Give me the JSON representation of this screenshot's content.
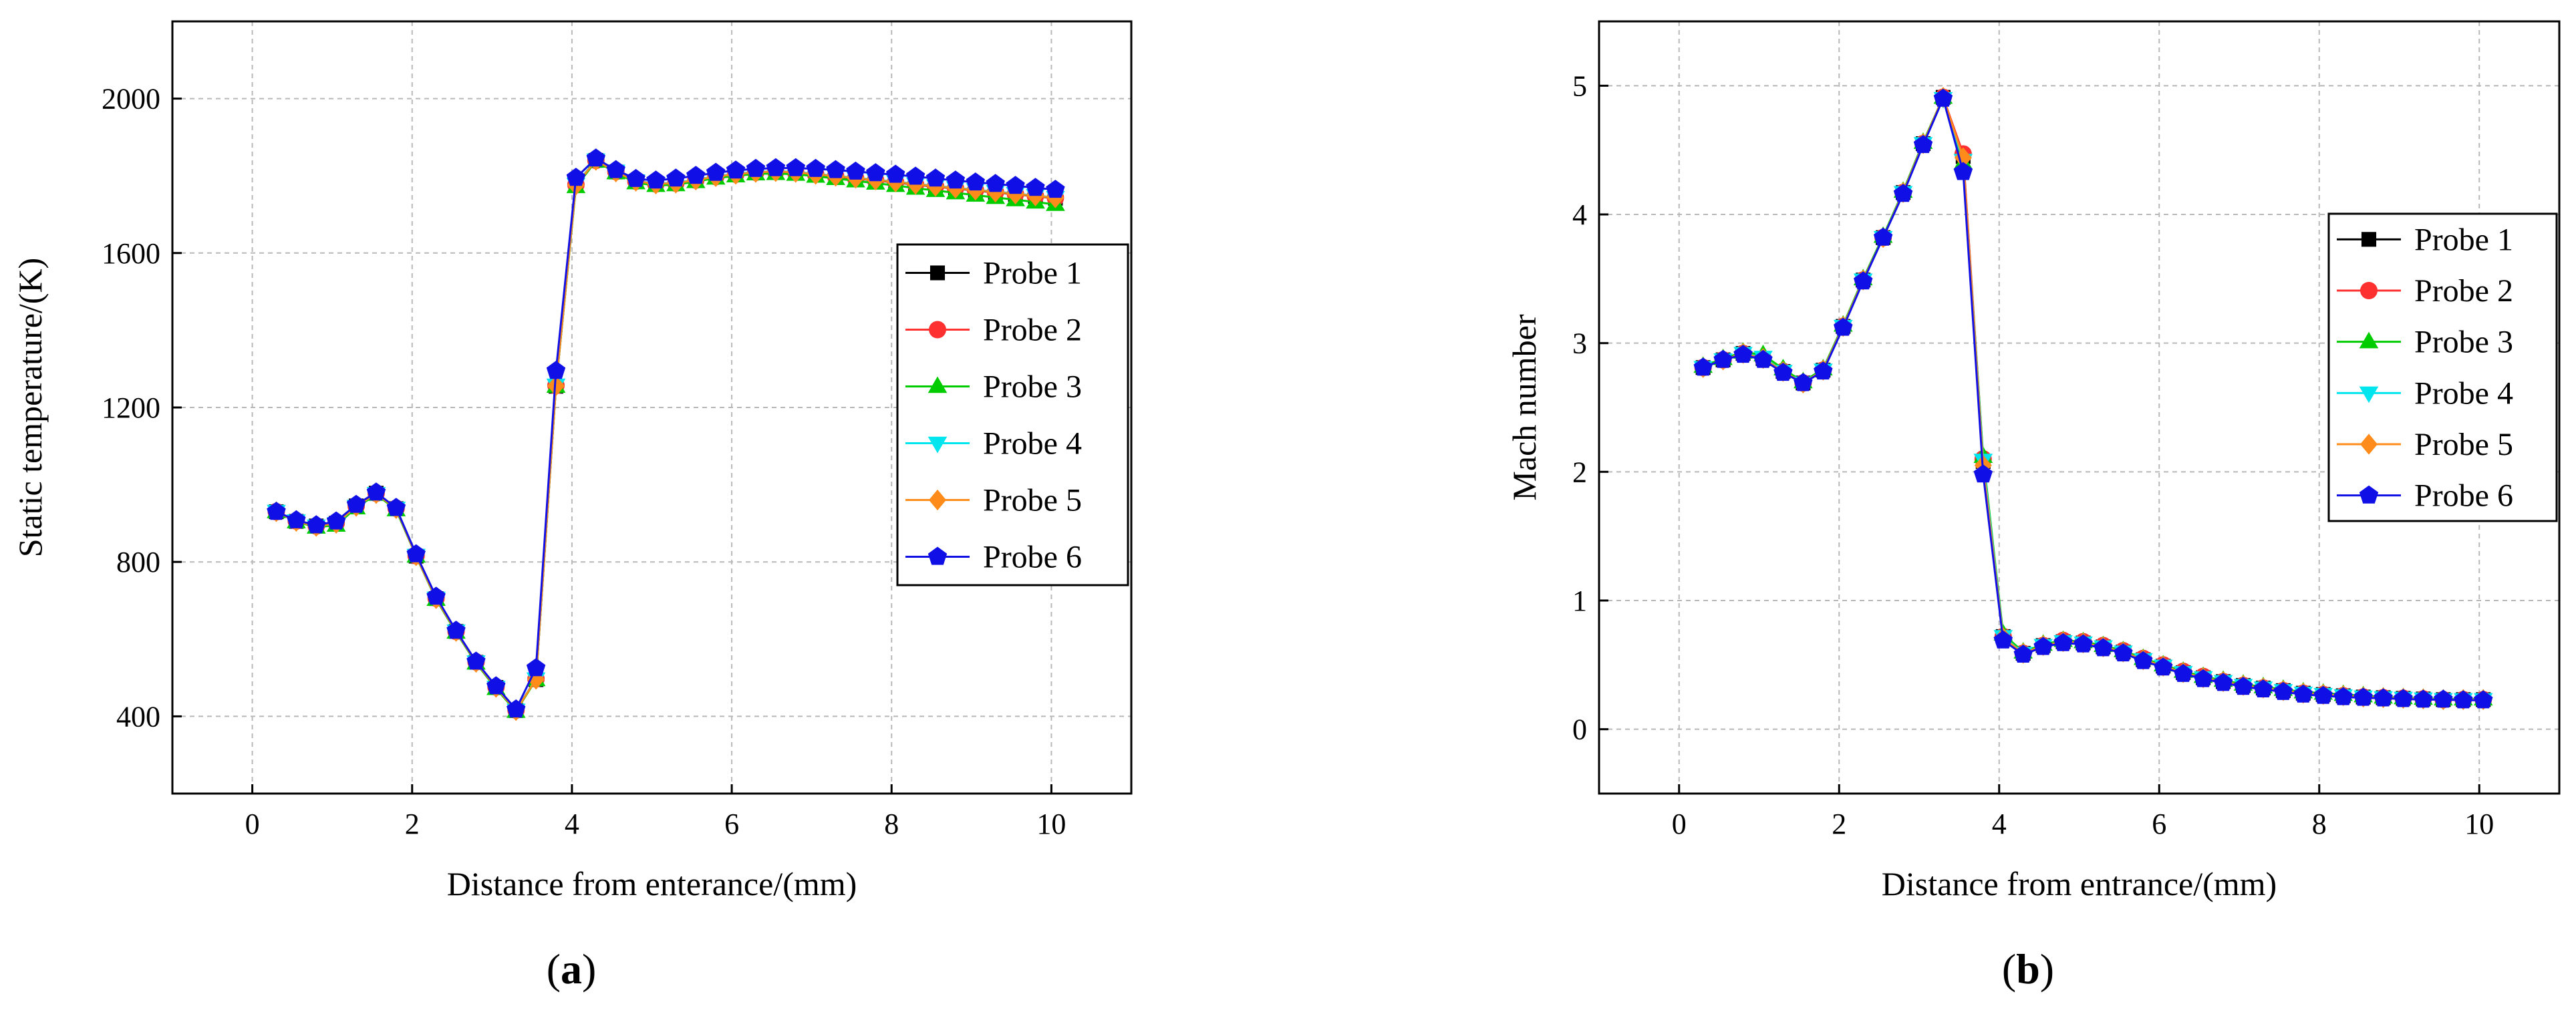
{
  "figure": {
    "panels": [
      {
        "label_open": "(",
        "label_letter": "a",
        "label_close": ")"
      },
      {
        "label_open": "(",
        "label_letter": "b",
        "label_close": ")"
      }
    ]
  },
  "chart_data": [
    {
      "type": "line",
      "title": "",
      "xlabel": "Distance from enterance/(mm)",
      "ylabel": "Static temperature/(K)",
      "xlim": [
        -1,
        11
      ],
      "ylim": [
        200,
        2200
      ],
      "xticks": [
        0,
        2,
        4,
        6,
        8,
        10
      ],
      "yticks": [
        400,
        800,
        1200,
        1600,
        2000
      ],
      "xtick_labels": [
        "0",
        "2",
        "4",
        "6",
        "8",
        "10"
      ],
      "ytick_labels": [
        "400",
        "800",
        "1200",
        "1600",
        "2000"
      ],
      "grid": true,
      "legend_position": "right",
      "x": [
        0.3,
        0.55,
        0.8,
        1.05,
        1.3,
        1.55,
        1.8,
        2.05,
        2.3,
        2.55,
        2.8,
        3.05,
        3.3,
        3.55,
        3.8,
        4.05,
        4.3,
        4.55,
        4.8,
        5.05,
        5.3,
        5.55,
        5.8,
        6.05,
        6.3,
        6.55,
        6.8,
        7.05,
        7.3,
        7.55,
        7.8,
        8.05,
        8.3,
        8.55,
        8.8,
        9.05,
        9.3,
        9.55,
        9.8,
        10.05
      ],
      "series": [
        {
          "name": "Probe 1",
          "color": "#000000",
          "marker": "square",
          "values": [
            930,
            905,
            893,
            900,
            945,
            978,
            938,
            815,
            705,
            620,
            540,
            475,
            415,
            495,
            1255,
            1775,
            1840,
            1810,
            1785,
            1778,
            1780,
            1788,
            1797,
            1803,
            1808,
            1810,
            1808,
            1803,
            1798,
            1793,
            1788,
            1783,
            1777,
            1772,
            1767,
            1762,
            1757,
            1752,
            1747,
            1742
          ]
        },
        {
          "name": "Probe 2",
          "color": "#ff3030",
          "marker": "circle",
          "values": [
            930,
            906,
            893,
            901,
            945,
            978,
            939,
            816,
            706,
            620,
            541,
            476,
            416,
            497,
            1257,
            1777,
            1840,
            1811,
            1786,
            1779,
            1781,
            1789,
            1798,
            1804,
            1809,
            1811,
            1809,
            1804,
            1799,
            1794,
            1789,
            1784,
            1778,
            1773,
            1768,
            1763,
            1758,
            1753,
            1748,
            1743
          ]
        },
        {
          "name": "Probe 3",
          "color": "#00cc00",
          "marker": "triangle-up",
          "values": [
            930,
            904,
            890,
            895,
            940,
            975,
            935,
            815,
            703,
            618,
            538,
            472,
            413,
            495,
            1255,
            1772,
            1838,
            1808,
            1782,
            1775,
            1777,
            1785,
            1794,
            1800,
            1805,
            1806,
            1804,
            1799,
            1793,
            1787,
            1781,
            1775,
            1768,
            1762,
            1756,
            1750,
            1744,
            1738,
            1732,
            1726
          ]
        },
        {
          "name": "Probe 4",
          "color": "#00e5ee",
          "marker": "triangle-down",
          "values": [
            931,
            906,
            893,
            899,
            944,
            977,
            939,
            817,
            706,
            621,
            541,
            475,
            416,
            497,
            1258,
            1778,
            1841,
            1812,
            1787,
            1780,
            1782,
            1790,
            1799,
            1805,
            1810,
            1812,
            1810,
            1805,
            1800,
            1795,
            1790,
            1785,
            1779,
            1774,
            1769,
            1764,
            1759,
            1754,
            1749,
            1744
          ]
        },
        {
          "name": "Probe 5",
          "color": "#ff8c1a",
          "marker": "diamond",
          "values": [
            930,
            905,
            892,
            900,
            944,
            977,
            938,
            816,
            705,
            620,
            540,
            475,
            415,
            496,
            1256,
            1776,
            1840,
            1810,
            1786,
            1779,
            1781,
            1789,
            1798,
            1804,
            1809,
            1811,
            1809,
            1804,
            1799,
            1794,
            1789,
            1784,
            1778,
            1773,
            1768,
            1763,
            1758,
            1753,
            1748,
            1743
          ]
        },
        {
          "name": "Probe 6",
          "color": "#1010e6",
          "marker": "pentagon",
          "values": [
            930,
            908,
            895,
            905,
            948,
            980,
            940,
            820,
            710,
            622,
            542,
            478,
            418,
            525,
            1295,
            1795,
            1845,
            1815,
            1792,
            1788,
            1793,
            1800,
            1808,
            1814,
            1818,
            1820,
            1820,
            1818,
            1815,
            1811,
            1807,
            1803,
            1798,
            1793,
            1788,
            1783,
            1779,
            1774,
            1769,
            1764
          ]
        }
      ]
    },
    {
      "type": "line",
      "title": "",
      "xlabel": "Distance from entrance/(mm)",
      "ylabel": "Mach number",
      "xlim": [
        -1,
        11
      ],
      "ylim": [
        -0.5,
        5.5
      ],
      "xticks": [
        0,
        2,
        4,
        6,
        8,
        10
      ],
      "yticks": [
        0,
        1,
        2,
        3,
        4,
        5
      ],
      "xtick_labels": [
        "0",
        "2",
        "4",
        "6",
        "8",
        "10"
      ],
      "ytick_labels": [
        "0",
        "1",
        "2",
        "3",
        "4",
        "5"
      ],
      "grid": true,
      "legend_position": "right",
      "x": [
        0.3,
        0.55,
        0.8,
        1.05,
        1.3,
        1.55,
        1.8,
        2.05,
        2.3,
        2.55,
        2.8,
        3.05,
        3.3,
        3.55,
        3.8,
        4.05,
        4.3,
        4.55,
        4.8,
        5.05,
        5.3,
        5.55,
        5.8,
        6.05,
        6.3,
        6.55,
        6.8,
        7.05,
        7.3,
        7.55,
        7.8,
        8.05,
        8.3,
        8.55,
        8.8,
        9.05,
        9.3,
        9.55,
        9.8,
        10.05
      ],
      "series": [
        {
          "name": "Probe 1",
          "color": "#000000",
          "marker": "square",
          "values": [
            2.81,
            2.87,
            2.92,
            2.88,
            2.78,
            2.69,
            2.79,
            3.13,
            3.49,
            3.82,
            4.17,
            4.55,
            4.91,
            4.45,
            2.08,
            0.72,
            0.59,
            0.65,
            0.68,
            0.67,
            0.64,
            0.6,
            0.54,
            0.49,
            0.44,
            0.4,
            0.37,
            0.34,
            0.32,
            0.3,
            0.28,
            0.27,
            0.26,
            0.25,
            0.245,
            0.24,
            0.235,
            0.23,
            0.23,
            0.23
          ]
        },
        {
          "name": "Probe 2",
          "color": "#ff3030",
          "marker": "circle",
          "values": [
            2.81,
            2.87,
            2.92,
            2.88,
            2.78,
            2.69,
            2.79,
            3.13,
            3.49,
            3.82,
            4.17,
            4.55,
            4.91,
            4.47,
            2.1,
            0.72,
            0.59,
            0.65,
            0.69,
            0.68,
            0.65,
            0.61,
            0.55,
            0.5,
            0.45,
            0.41,
            0.37,
            0.34,
            0.32,
            0.3,
            0.28,
            0.27,
            0.26,
            0.25,
            0.245,
            0.24,
            0.235,
            0.23,
            0.23,
            0.23
          ]
        },
        {
          "name": "Probe 3",
          "color": "#00cc00",
          "marker": "triangle-up",
          "values": [
            2.82,
            2.88,
            2.93,
            2.91,
            2.8,
            2.7,
            2.8,
            3.14,
            3.5,
            3.83,
            4.18,
            4.56,
            4.91,
            4.4,
            2.12,
            0.74,
            0.6,
            0.66,
            0.69,
            0.68,
            0.65,
            0.61,
            0.55,
            0.5,
            0.45,
            0.41,
            0.38,
            0.35,
            0.33,
            0.31,
            0.29,
            0.28,
            0.27,
            0.26,
            0.25,
            0.245,
            0.24,
            0.235,
            0.235,
            0.235
          ]
        },
        {
          "name": "Probe 4",
          "color": "#00e5ee",
          "marker": "triangle-down",
          "values": [
            2.81,
            2.87,
            2.92,
            2.89,
            2.78,
            2.69,
            2.79,
            3.13,
            3.49,
            3.82,
            4.17,
            4.55,
            4.9,
            4.42,
            2.09,
            0.72,
            0.59,
            0.65,
            0.68,
            0.67,
            0.64,
            0.6,
            0.54,
            0.49,
            0.44,
            0.4,
            0.37,
            0.34,
            0.32,
            0.3,
            0.28,
            0.27,
            0.26,
            0.25,
            0.245,
            0.24,
            0.235,
            0.23,
            0.23,
            0.23
          ]
        },
        {
          "name": "Probe 5",
          "color": "#ff8c1a",
          "marker": "diamond",
          "values": [
            2.81,
            2.87,
            2.92,
            2.88,
            2.78,
            2.69,
            2.79,
            3.13,
            3.49,
            3.82,
            4.17,
            4.55,
            4.91,
            4.44,
            2.05,
            0.71,
            0.59,
            0.65,
            0.68,
            0.67,
            0.64,
            0.6,
            0.54,
            0.49,
            0.44,
            0.4,
            0.37,
            0.34,
            0.32,
            0.3,
            0.28,
            0.27,
            0.26,
            0.25,
            0.245,
            0.24,
            0.235,
            0.23,
            0.23,
            0.23
          ]
        },
        {
          "name": "Probe 6",
          "color": "#1010e6",
          "marker": "pentagon",
          "values": [
            2.81,
            2.87,
            2.91,
            2.87,
            2.77,
            2.69,
            2.78,
            3.12,
            3.48,
            3.82,
            4.16,
            4.54,
            4.9,
            4.33,
            1.98,
            0.69,
            0.58,
            0.64,
            0.67,
            0.66,
            0.63,
            0.59,
            0.53,
            0.48,
            0.43,
            0.39,
            0.36,
            0.33,
            0.31,
            0.29,
            0.27,
            0.26,
            0.25,
            0.245,
            0.24,
            0.235,
            0.23,
            0.23,
            0.225,
            0.225
          ]
        }
      ]
    }
  ]
}
